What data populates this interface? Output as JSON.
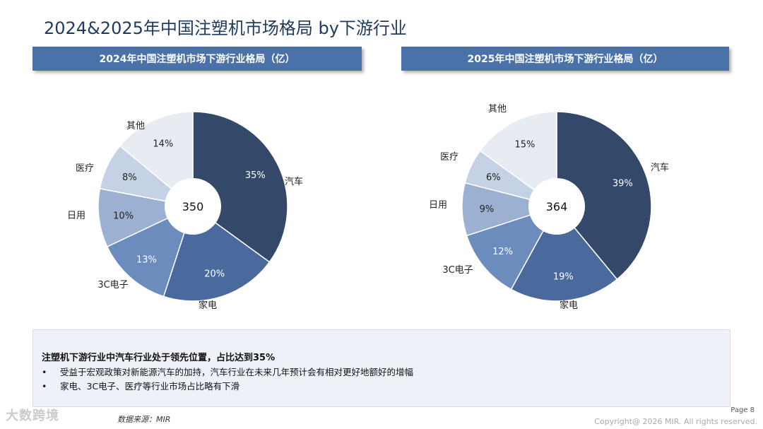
{
  "page": {
    "title": "2024&2025年中国注塑机市场格局 by下游行业",
    "page_number": "Page 8",
    "copyright": "Copyright@ 2026 MIR. All rights reserved.",
    "source": "数据来源：MIR",
    "watermark": "大数跨境"
  },
  "summary": {
    "headline": "注塑机下游行业中汽车行业处于领先位置，占比达到35%",
    "bullets": [
      "受益于宏观政策对新能源汽车的加持，汽车行业在未来几年预计会有相对更好地额好的增幅",
      "家电、3C电子、医疗等行业市场占比略有下滑"
    ],
    "bullet_symbol": "•"
  },
  "colors": {
    "header_bg": "#4a72a8",
    "title": "#1f3a5f",
    "slices": [
      "#34496a",
      "#4a6a9e",
      "#6c8cbe",
      "#9cb0d1",
      "#c5d1e5",
      "#e7ebf2"
    ]
  },
  "chart_data": [
    {
      "type": "pie",
      "title": "2024年中国注塑机市场下游行业格局（亿）",
      "center_label": "350",
      "categories": [
        "汽车",
        "家电",
        "3C电子",
        "日用",
        "医疗",
        "其他"
      ],
      "values": [
        35,
        20,
        13,
        10,
        8,
        14
      ],
      "value_labels": [
        "35%",
        "20%",
        "13%",
        "10%",
        "8%",
        "14%"
      ]
    },
    {
      "type": "pie",
      "title": "2025年中国注塑机市场下游行业格局（亿）",
      "center_label": "364",
      "categories": [
        "汽车",
        "家电",
        "3C电子",
        "日用",
        "医疗",
        "其他"
      ],
      "values": [
        39,
        19,
        12,
        9,
        6,
        15
      ],
      "value_labels": [
        "39%",
        "19%",
        "12%",
        "9%",
        "6%",
        "15%"
      ]
    }
  ]
}
